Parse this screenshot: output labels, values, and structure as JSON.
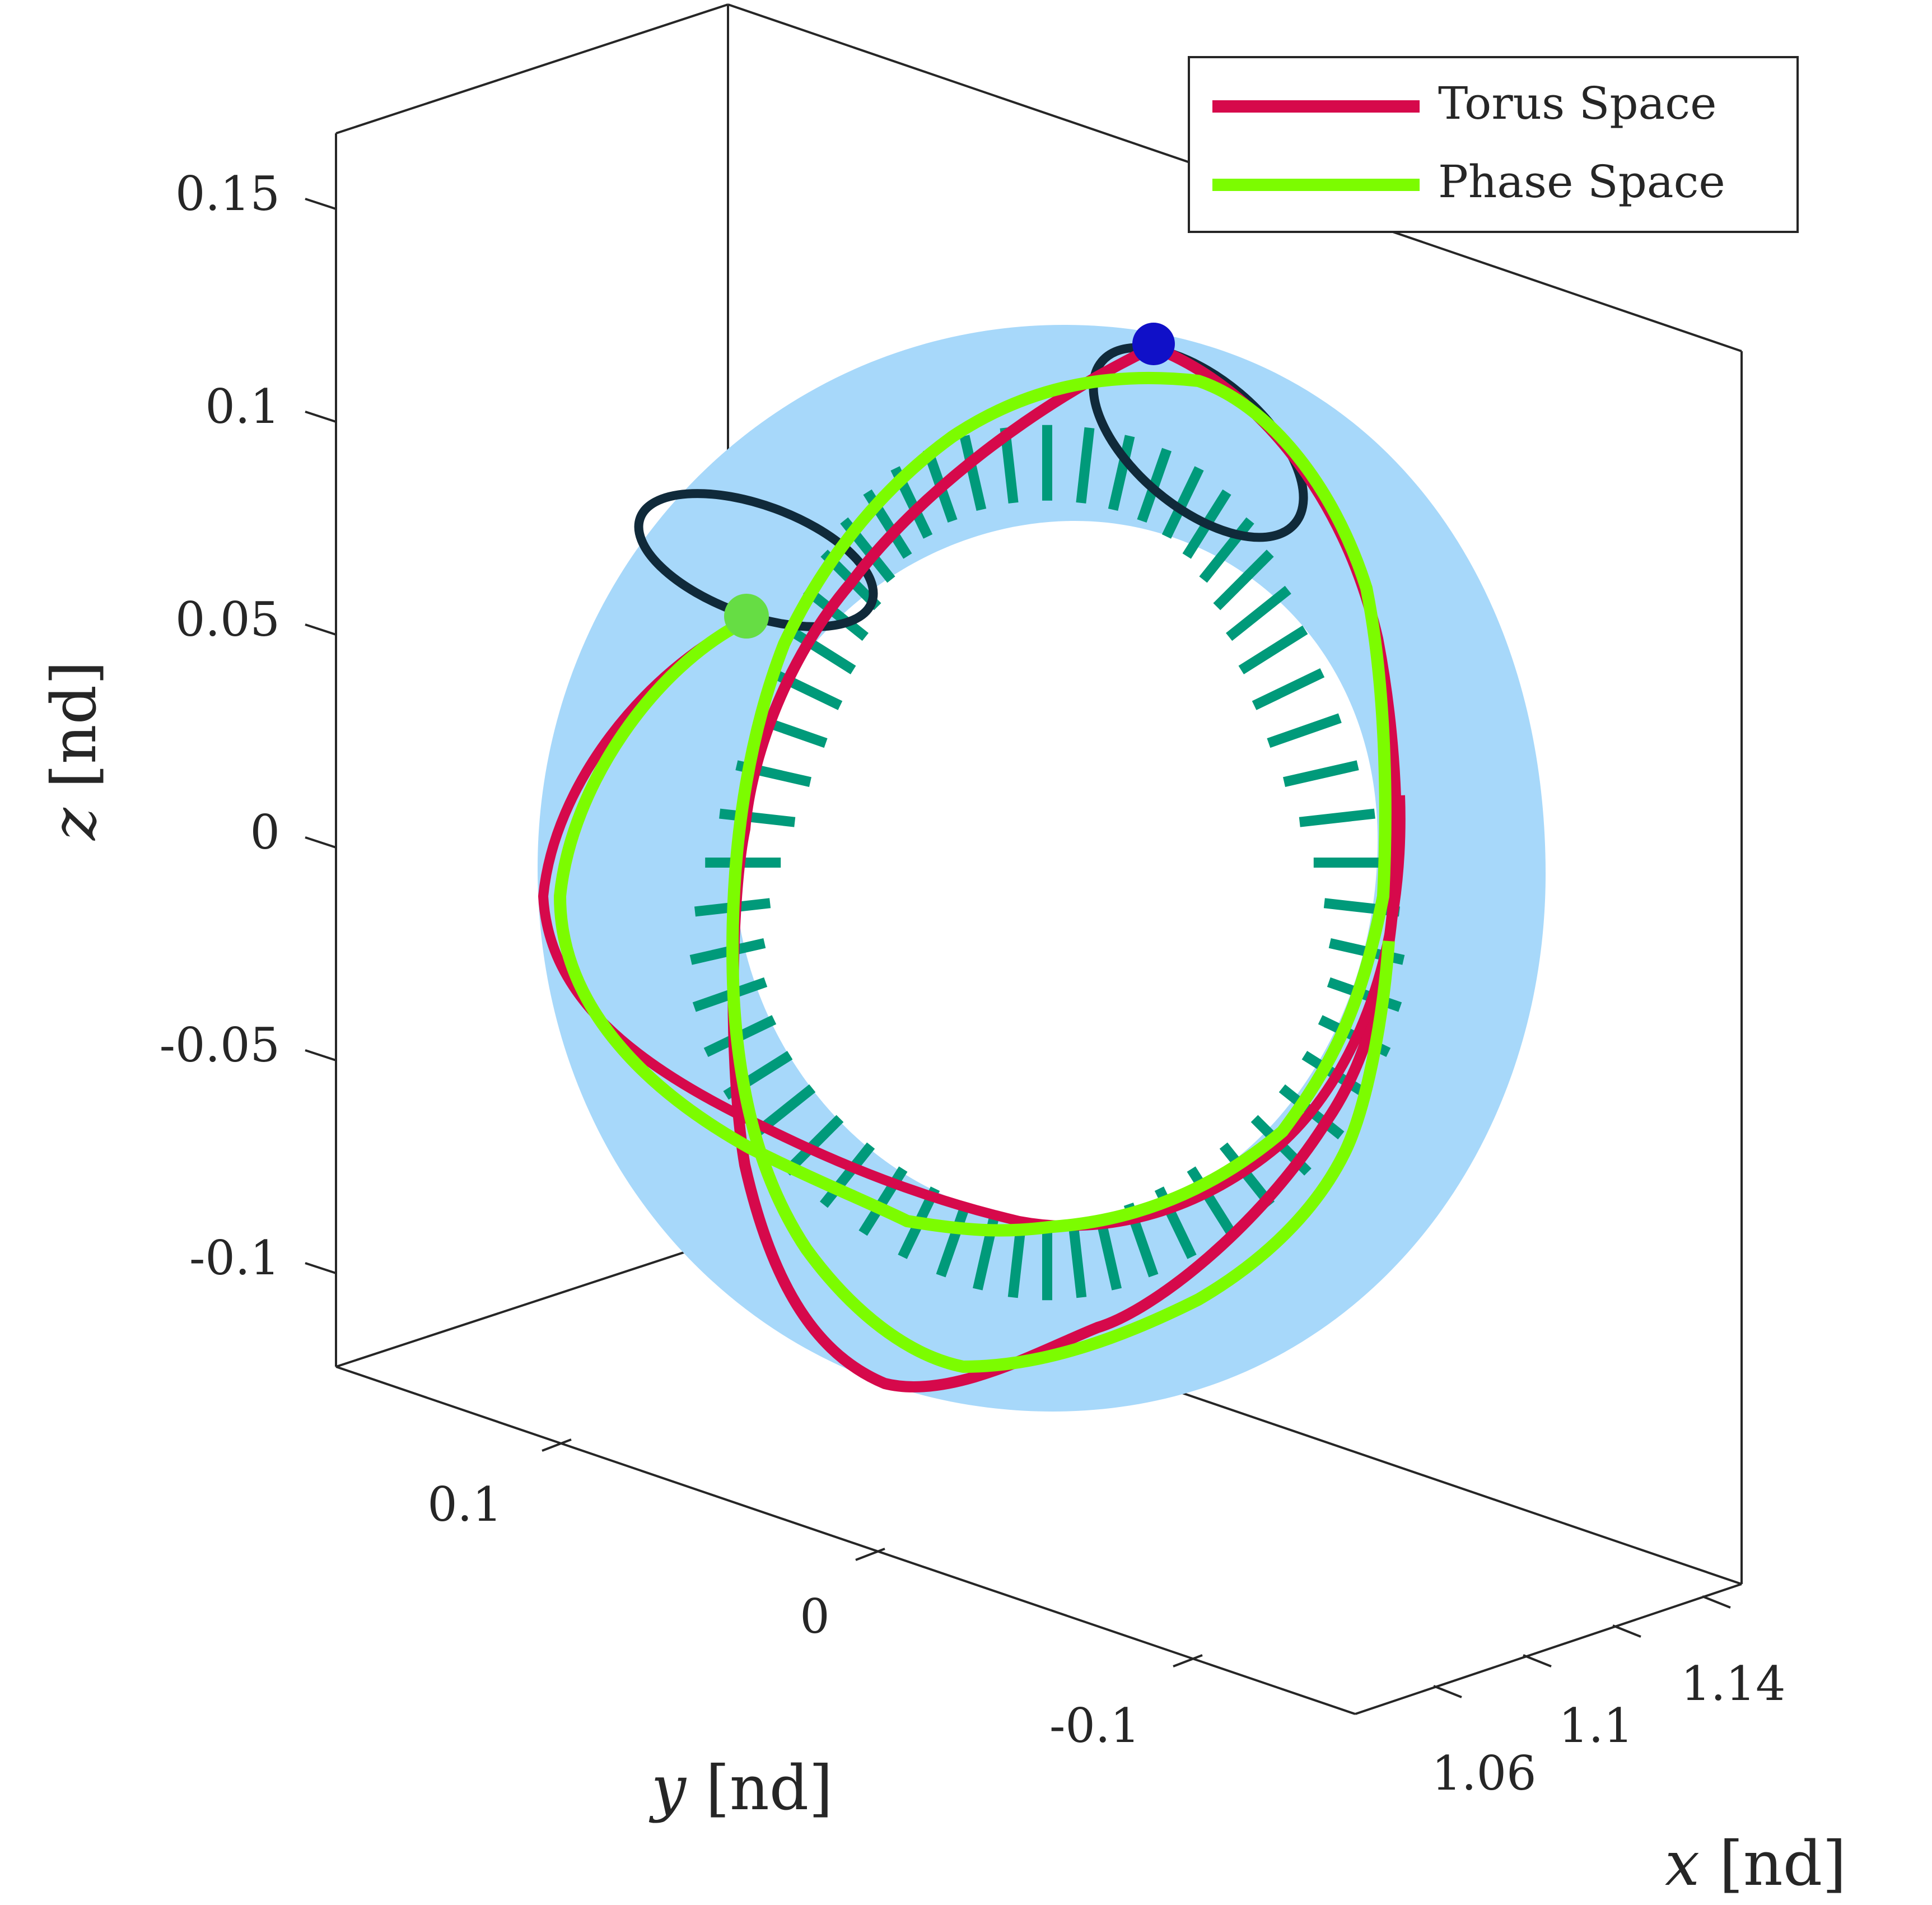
{
  "chart_data": {
    "type": "line",
    "title": "",
    "axes": {
      "x": {
        "label_var": "x",
        "label_unit": "[nd]",
        "ticks": [
          "1.06",
          "1.1",
          "1.14"
        ]
      },
      "y": {
        "label_var": "y",
        "label_unit": "[nd]",
        "ticks": [
          "0.1",
          "0",
          "-0.1"
        ]
      },
      "z": {
        "label_var": "z",
        "label_unit": "[nd]",
        "ticks": [
          "0.15",
          "0.1",
          "0.05",
          "0",
          "-0.05",
          "-0.1"
        ]
      },
      "z_tick_values": [
        0.15,
        0.1,
        0.05,
        0,
        -0.05,
        -0.1
      ],
      "grid": false,
      "box": true
    },
    "legend": {
      "placement": "top-right",
      "entries": [
        {
          "label": "Torus Space",
          "color": "#d6094b"
        },
        {
          "label": "Phase Space",
          "color": "#7cfc00"
        }
      ]
    },
    "series": [
      {
        "name": "Torus Space",
        "color": "#d6094b"
      },
      {
        "name": "Phase Space",
        "color": "#7cfc00"
      }
    ],
    "colors": {
      "torus_surface": "#a7d8fa",
      "tangent_segments": "#009a7a",
      "invariant_circles": "#102a3a",
      "start_marker": "#66dd44",
      "end_marker": "#1010c8"
    }
  }
}
